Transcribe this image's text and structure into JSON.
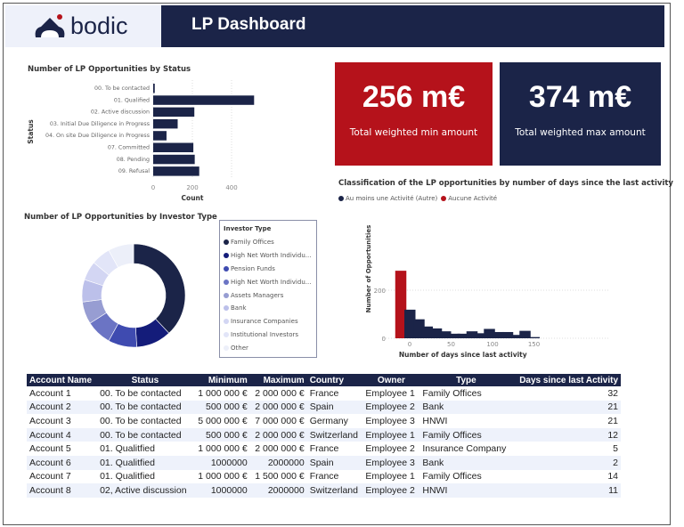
{
  "header": {
    "logo": "bodic",
    "title": "LP Dashboard"
  },
  "kpis": [
    {
      "value": "256 m€",
      "label": "Total weighted min amount",
      "color": "#b5121b"
    },
    {
      "value": "374 m€",
      "label": "Total weighted max amount",
      "color": "#1b2448"
    }
  ],
  "status_chart": {
    "title": "Number of LP Opportunities by Status"
  },
  "investor_chart": {
    "title": "Number of LP Opportunities by Investor Type",
    "legend_title": "Investor Type"
  },
  "activity_chart": {
    "title": "Classification of the LP opportunities by number of days since the last activity"
  },
  "chart_data": [
    {
      "type": "bar",
      "orientation": "horizontal",
      "title": "Number of LP Opportunities by Status",
      "xlabel": "Count",
      "ylabel": "Status",
      "categories": [
        "00. To be contacted",
        "01. Qualified",
        "02. Active discussion",
        "03. Initial Due Diligence in Progress",
        "04. On site Due Diligence in Progress",
        "07. Committed",
        "08. Pending",
        "09. Refusal"
      ],
      "values": [
        8,
        515,
        210,
        125,
        68,
        205,
        212,
        235
      ],
      "xlim": [
        0,
        520
      ],
      "xticks": [
        "0",
        "200",
        "400"
      ],
      "color": "#1b2448",
      "grid": true
    },
    {
      "type": "pie",
      "donut": true,
      "title": "Number of LP Opportunities by Investor Type",
      "categories": [
        "Family Offices",
        "High Net Worth Individu...",
        "Pension Funds",
        "High Net Worth Individu...",
        "Assets Managers",
        "Bank",
        "Insurance Companies",
        "Institutional Investors",
        "Other"
      ],
      "values": [
        38,
        11,
        9,
        8,
        7,
        7,
        6,
        6,
        8
      ],
      "colors": [
        "#1b2448",
        "#141c7a",
        "#3f4bb0",
        "#6b74c4",
        "#979dd2",
        "#bcc0ea",
        "#d3d6f3",
        "#e2e5f8",
        "#eceff9"
      ]
    },
    {
      "type": "bar",
      "title": "Classification of the LP opportunities by number of days since the last activity",
      "xlabel": "Number of days since last activity",
      "ylabel": "Number of Opportunities",
      "legend": [
        {
          "name": "Au moins une Activité (Autre)",
          "color": "#1b2448"
        },
        {
          "name": "Aucune Activité",
          "color": "#b5121b"
        }
      ],
      "legend_position": "top-left",
      "x": [
        -11,
        0,
        11,
        21,
        32,
        43,
        54,
        64,
        75,
        86,
        96,
        107,
        118,
        129,
        139,
        150
      ],
      "values": [
        281,
        119,
        79,
        49,
        41,
        29,
        19,
        19,
        29,
        21,
        39,
        26,
        26,
        14,
        31,
        5
      ],
      "series_index": [
        1,
        0,
        0,
        0,
        0,
        0,
        0,
        0,
        0,
        0,
        0,
        0,
        0,
        0,
        0,
        0
      ],
      "xticks": [
        "0",
        "50",
        "100",
        "150"
      ],
      "yticks": [
        "0",
        "200"
      ],
      "ylim": [
        0,
        300
      ]
    }
  ],
  "table": {
    "columns": [
      "Account Name",
      "Status",
      "Minimum",
      "Maximum",
      "Country",
      "Owner",
      "Type",
      "Days since last Activity"
    ],
    "rows": [
      [
        "Account 1",
        "00. To be contacted",
        "1 000 000 €",
        "2 000 000 €",
        "France",
        "Employee 1",
        "Family Offices",
        "32"
      ],
      [
        "Account 2",
        "00. To be contacted",
        "500 000 €",
        "2 000 000 €",
        "Spain",
        "Employee 2",
        "Bank",
        "21"
      ],
      [
        "Account 3",
        "00. To be contacted",
        "5 000 000 €",
        "7 000 000 €",
        "Germany",
        "Employee 3",
        "HNWI",
        "21"
      ],
      [
        "Account 4",
        "00. To be contacted",
        "500 000 €",
        "2 000 000 €",
        "Switzerland",
        "Employee 1",
        "Family Offices",
        "12"
      ],
      [
        "Account 5",
        "01. Qualitfied",
        "1 000 000 €",
        "2 000 000 €",
        "France",
        "Employee 2",
        "Insurance Company",
        "5"
      ],
      [
        "Account 6",
        "01. Qualitfied",
        "1000000",
        "2000000",
        "Spain",
        "Employee 3",
        "Bank",
        "2"
      ],
      [
        "Account 7",
        "01. Qualitfied",
        "1 000 000 €",
        "1 500 000 €",
        "France",
        "Employee 1",
        "Family Offices",
        "14"
      ],
      [
        "Account 8",
        "02, Active discussion",
        "1000000",
        "2000000",
        "Switzerland",
        "Employee 2",
        "HNWI",
        "11"
      ]
    ]
  }
}
